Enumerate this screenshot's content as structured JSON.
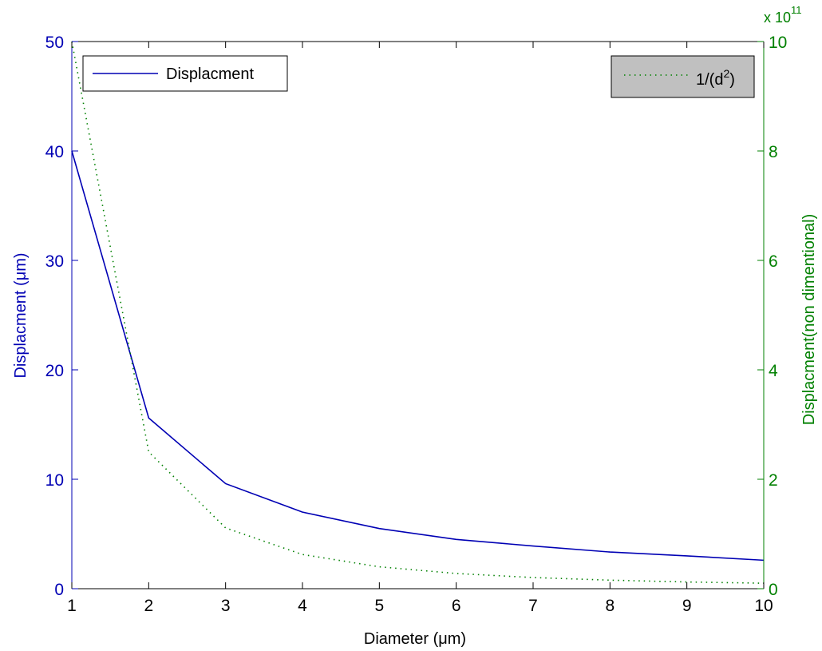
{
  "chart_data": {
    "type": "line",
    "x": [
      1,
      2,
      3,
      4,
      5,
      6,
      7,
      8,
      9,
      10
    ],
    "xlabel": "Diameter (μm)",
    "xlim": [
      1,
      10
    ],
    "xticks": [
      "1",
      "2",
      "3",
      "4",
      "5",
      "6",
      "7",
      "8",
      "9",
      "10"
    ],
    "y_left": {
      "label": "Displacment (μm)",
      "lim": [
        0,
        50
      ],
      "ticks": [
        "0",
        "10",
        "20",
        "30",
        "40",
        "50"
      ],
      "color": "#0000b4"
    },
    "y_right": {
      "label": "Displacment(non dimentional)",
      "lim": [
        0,
        10
      ],
      "ticks": [
        "0",
        "2",
        "4",
        "6",
        "8",
        "10"
      ],
      "multiplier": "x 10",
      "multiplier_exp": "11",
      "color": "#008000"
    },
    "series": [
      {
        "name": "Displacment",
        "axis": "left",
        "style": "solid",
        "color": "#0000b4",
        "values": [
          40,
          15.6,
          9.6,
          7,
          5.5,
          4.5,
          3.9,
          3.35,
          3.0,
          2.6
        ]
      },
      {
        "name": "1/(d2)",
        "axis": "right",
        "style": "dotted",
        "color": "#008000",
        "values": [
          10,
          2.5,
          1.111,
          0.625,
          0.4,
          0.278,
          0.204,
          0.156,
          0.123,
          0.1
        ]
      }
    ],
    "legend_left": {
      "label": "Displacment",
      "position": "top-left"
    },
    "legend_right": {
      "label_prefix": "1/(d",
      "label_sup": "2",
      "label_suffix": ")",
      "position": "top-right",
      "background": "#c0c0c0"
    },
    "grid": false
  }
}
